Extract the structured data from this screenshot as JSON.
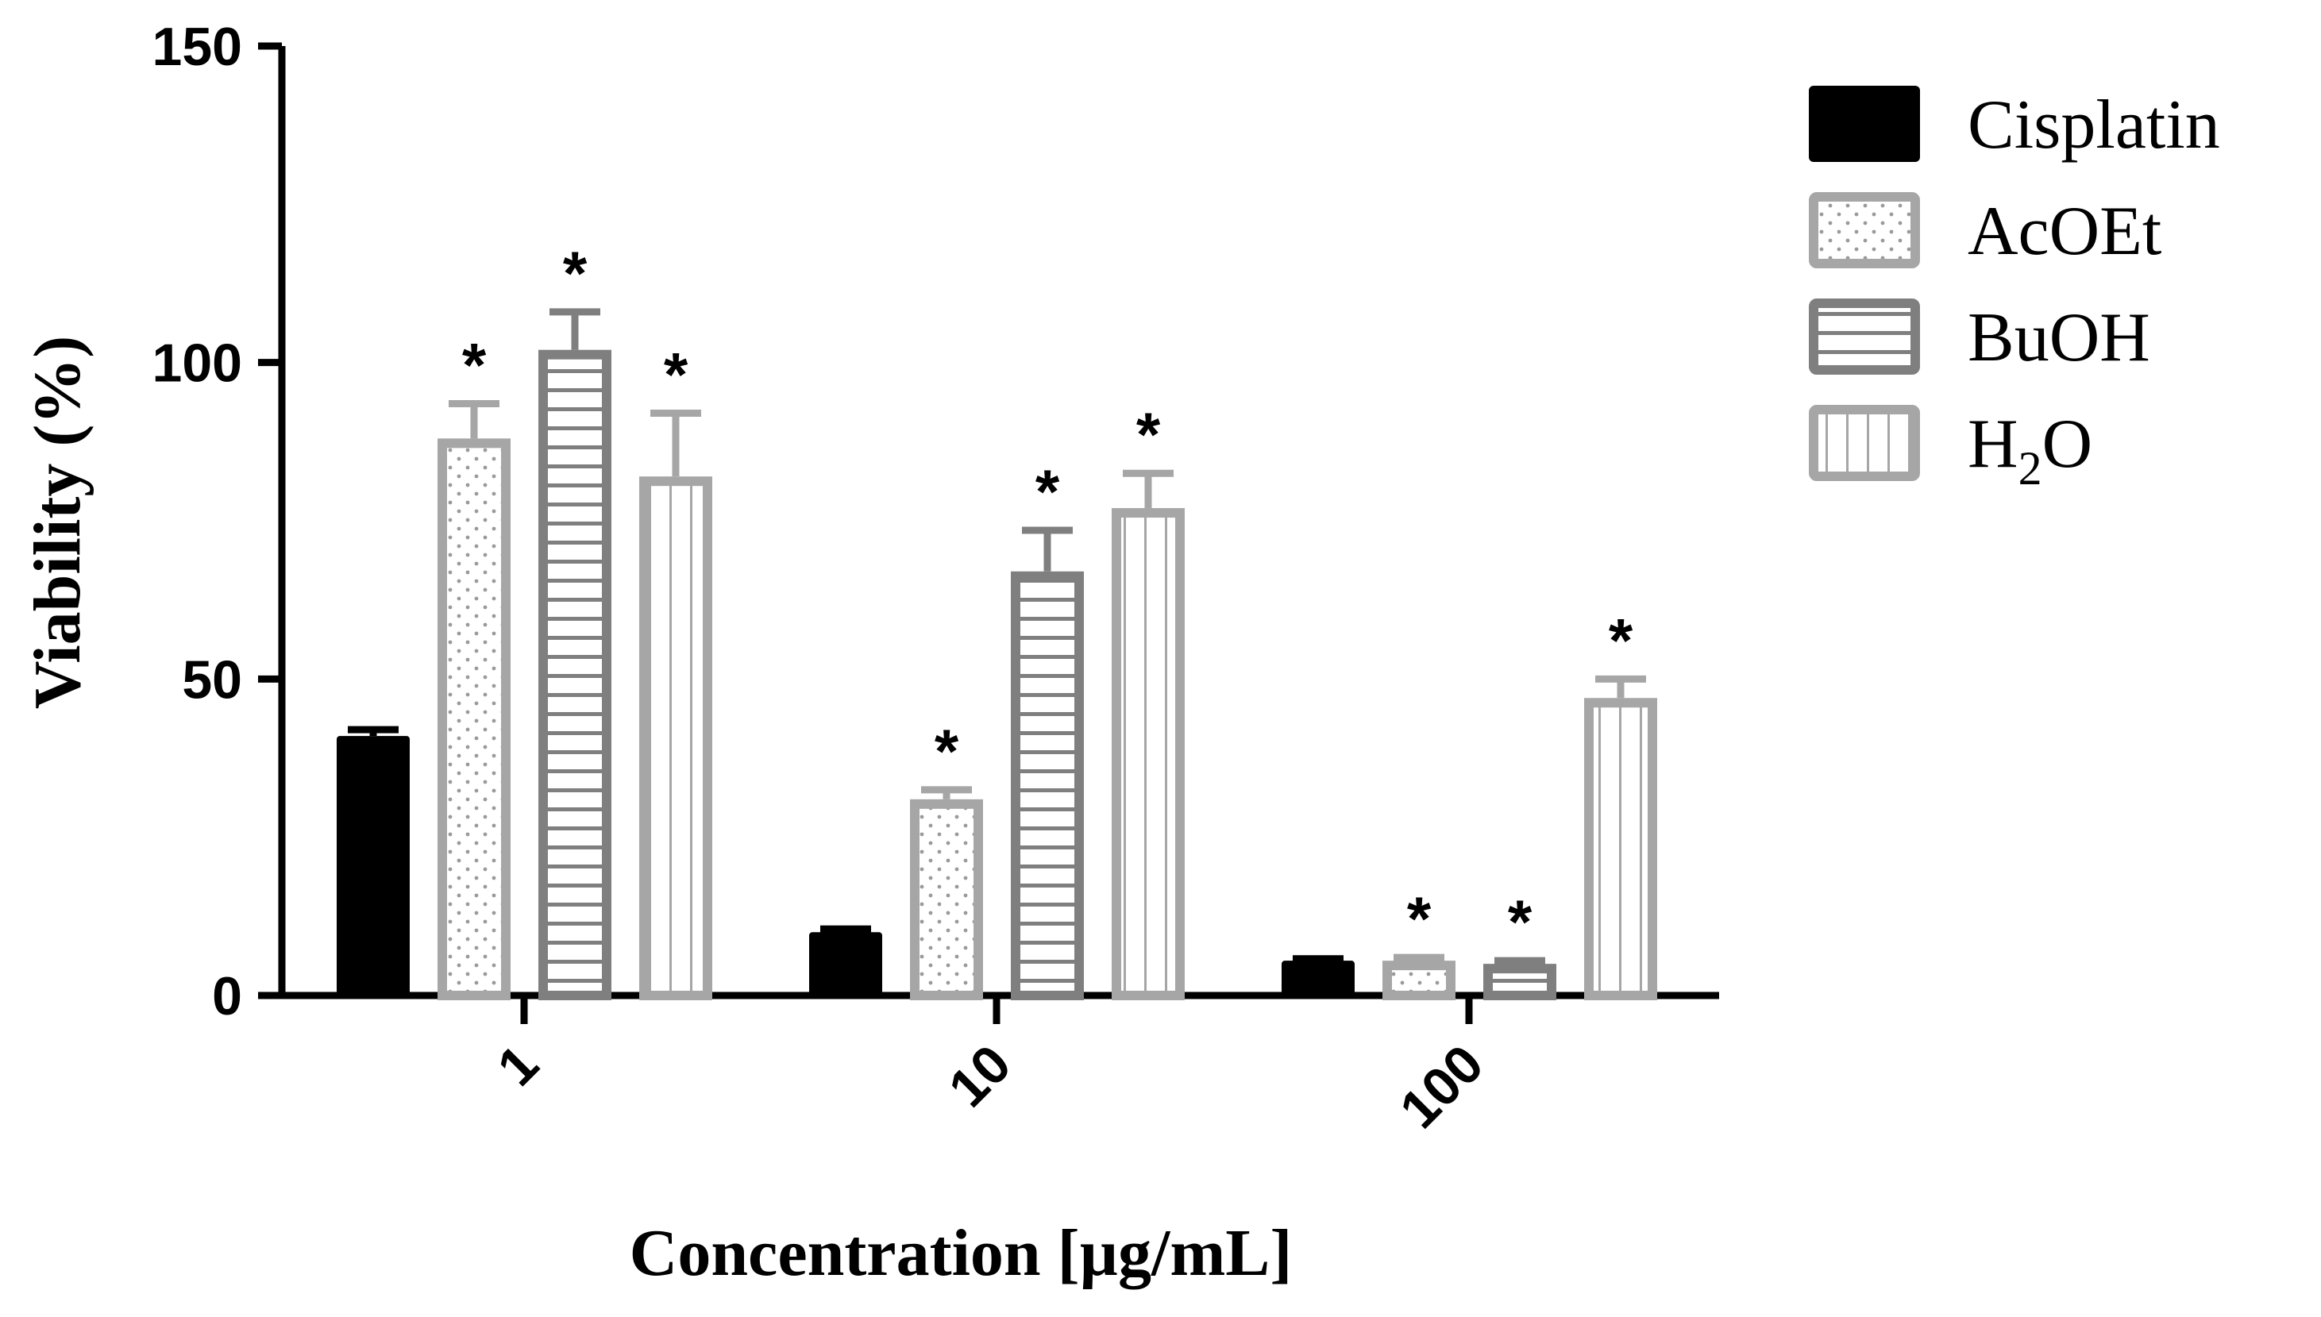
{
  "chart_data": {
    "type": "bar",
    "title": "",
    "xlabel": "Concentration [µg/mL]",
    "ylabel": "Viability (%)",
    "ylim": [
      0,
      150
    ],
    "yticks": [
      0,
      50,
      100,
      150
    ],
    "ytick_labels": [
      "0",
      "50",
      "100",
      "150"
    ],
    "categories": [
      "1",
      "10",
      "100"
    ],
    "legend_position": "top-right",
    "series": [
      {
        "name": "Cisplatin",
        "label_main": "Cisplatin",
        "label_sub": "",
        "label_tail": "",
        "pattern": "solid",
        "color": "#000000",
        "values": [
          41,
          10,
          5.5
        ],
        "errors": [
          1,
          0.5,
          0.3
        ],
        "significant": [
          false,
          false,
          false
        ]
      },
      {
        "name": "AcOEt",
        "label_main": "AcOEt",
        "label_sub": "",
        "label_tail": "",
        "pattern": "dots",
        "color": "#a6a6a6",
        "values": [
          88,
          31,
          5.5
        ],
        "errors": [
          5.5,
          1.5,
          0.5
        ],
        "significant": [
          true,
          true,
          true
        ]
      },
      {
        "name": "BuOH",
        "label_main": "BuOH",
        "label_sub": "",
        "label_tail": "",
        "pattern": "hlines",
        "color": "#7f7f7f",
        "values": [
          102,
          67,
          5
        ],
        "errors": [
          6,
          6.5,
          0.5
        ],
        "significant": [
          true,
          true,
          true
        ]
      },
      {
        "name": "H2O",
        "label_main": "H",
        "label_sub": "2",
        "label_tail": "O",
        "pattern": "vlines",
        "color": "#a6a6a6",
        "values": [
          82,
          77,
          47
        ],
        "errors": [
          10,
          5.5,
          3
        ],
        "significant": [
          true,
          true,
          true
        ]
      }
    ],
    "significance_marker": "*"
  }
}
